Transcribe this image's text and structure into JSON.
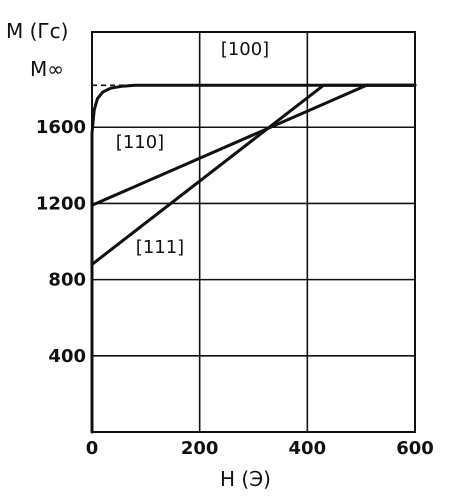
{
  "chart_data": {
    "type": "line",
    "ylabel": "M (Гс)",
    "xlabel": "H (Э)",
    "xlim": [
      0,
      600
    ],
    "ylim": [
      0,
      2100
    ],
    "x_ticks": [
      0,
      200,
      400,
      600
    ],
    "x_tick_labels": [
      "0",
      "200",
      "400",
      "600"
    ],
    "y_ticks": [
      400,
      800,
      1200,
      1600
    ],
    "y_tick_labels": [
      "400",
      "800",
      "1200",
      "1600"
    ],
    "saturation_label": "M∞",
    "saturation_value": 1820,
    "grid": true,
    "series": [
      {
        "name": "[100]",
        "x": [
          0,
          0,
          4,
          10,
          20,
          35,
          55,
          80,
          600
        ],
        "y": [
          0,
          1570,
          1690,
          1750,
          1785,
          1805,
          1815,
          1820,
          1820
        ]
      },
      {
        "name": "[110]",
        "x": [
          0,
          510,
          600
        ],
        "y": [
          1190,
          1820,
          1820
        ]
      },
      {
        "name": "[111]",
        "x": [
          0,
          430,
          600
        ],
        "y": [
          880,
          1820,
          1820
        ]
      }
    ],
    "series_labels": [
      "[100]",
      "[110]",
      "[111]"
    ]
  },
  "colors": {
    "ink": "#111111",
    "background": "#ffffff"
  }
}
